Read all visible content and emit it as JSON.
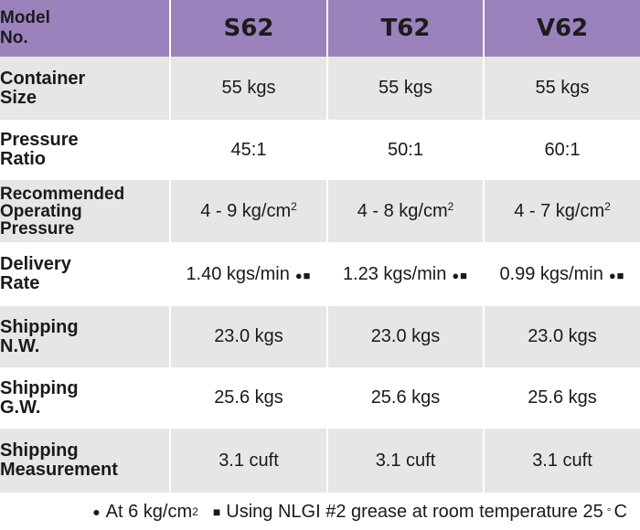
{
  "table": {
    "corner_line1": "Model",
    "corner_line2": "No.",
    "models": [
      "S62",
      "T62",
      "V62"
    ],
    "rows": [
      {
        "label_lines": [
          "Container",
          "Size"
        ],
        "values": [
          "55 kgs",
          "55 kgs",
          "55 kgs"
        ]
      },
      {
        "label_lines": [
          "Pressure",
          "Ratio"
        ],
        "values": [
          "45:1",
          "50:1",
          "60:1"
        ]
      },
      {
        "label_lines": [
          "Recommended",
          "Operating",
          "Pressure"
        ],
        "values": [
          "4 - 9 kg/cm",
          "4 - 8 kg/cm",
          "4 - 7 kg/cm"
        ],
        "superscript": "2"
      },
      {
        "label_lines": [
          "Delivery",
          "Rate"
        ],
        "values": [
          "1.40 kgs/min",
          "1.23 kgs/min",
          "0.99 kgs/min"
        ],
        "marks": "●■"
      },
      {
        "label_lines": [
          "Shipping",
          "N.W."
        ],
        "values": [
          "23.0 kgs",
          "23.0 kgs",
          "23.0 kgs"
        ]
      },
      {
        "label_lines": [
          "Shipping",
          "G.W."
        ],
        "values": [
          "25.6 kgs",
          "25.6 kgs",
          "25.6 kgs"
        ]
      },
      {
        "label_lines": [
          "Shipping",
          "Measurement"
        ],
        "values": [
          "3.1 cuft",
          "3.1 cuft",
          "3.1 cuft"
        ]
      }
    ]
  },
  "notes": {
    "circle_glyph": "●",
    "circle_text": "At 6 kg/cm",
    "circle_sup": "2",
    "square_glyph": "■",
    "square_text": "Using NLGI #2 grease at room temperature 25",
    "degree_symbol": "°",
    "unit_c": "C"
  },
  "colors": {
    "header_purple": "#9b82bd",
    "row_gray": "#e6e6e6"
  }
}
